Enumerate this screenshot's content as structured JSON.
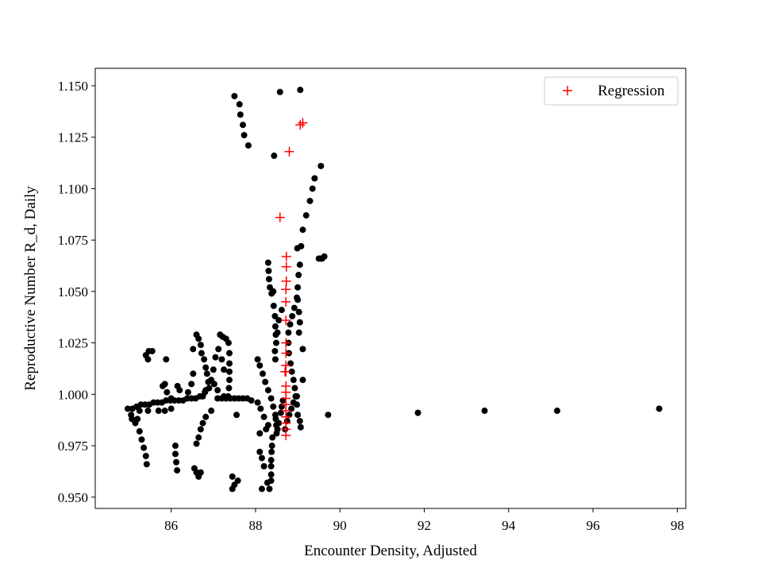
{
  "chart_data": {
    "type": "scatter",
    "title": "",
    "xlabel": "Encounter Density, Adjusted",
    "ylabel": "Reproductive Number R_d, Daily",
    "xlim": [
      84.2,
      98.2
    ],
    "ylim": [
      0.9445,
      1.1585
    ],
    "xticks": [
      86,
      88,
      90,
      92,
      94,
      96,
      98
    ],
    "xtick_labels": [
      "86",
      "88",
      "90",
      "92",
      "94",
      "96",
      "98"
    ],
    "yticks": [
      0.95,
      0.975,
      1.0,
      1.025,
      1.05,
      1.075,
      1.1,
      1.125,
      1.15
    ],
    "ytick_labels": [
      "0.950",
      "0.975",
      "1.000",
      "1.025",
      "1.050",
      "1.075",
      "1.100",
      "1.125",
      "1.150"
    ],
    "grid": false,
    "legend": {
      "position": "top-right",
      "entries": [
        "Regression"
      ]
    },
    "colors": {
      "data": "#000000",
      "regression": "#ff0000"
    },
    "series": [
      {
        "marker": "dot",
        "color": "#000000",
        "points": [
          [
            87.5,
            1.145
          ],
          [
            87.62,
            1.141
          ],
          [
            87.64,
            1.136
          ],
          [
            87.7,
            1.131
          ],
          [
            87.73,
            1.126
          ],
          [
            87.83,
            1.121
          ],
          [
            88.58,
            1.147
          ],
          [
            89.06,
            1.148
          ],
          [
            88.44,
            1.116
          ],
          [
            89.55,
            1.111
          ],
          [
            89.4,
            1.105
          ],
          [
            89.35,
            1.1
          ],
          [
            89.29,
            1.094
          ],
          [
            89.2,
            1.087
          ],
          [
            89.12,
            1.08
          ],
          [
            89.08,
            1.072
          ],
          [
            88.99,
            1.071
          ],
          [
            89.5,
            1.066
          ],
          [
            89.58,
            1.066
          ],
          [
            89.63,
            1.067
          ],
          [
            89.55,
            1.066
          ],
          [
            89.05,
            1.063
          ],
          [
            89.02,
            1.058
          ],
          [
            89.0,
            1.052
          ],
          [
            89.0,
            1.046
          ],
          [
            89.03,
            1.04
          ],
          [
            89.05,
            1.035
          ],
          [
            89.03,
            1.03
          ],
          [
            88.98,
            1.047
          ],
          [
            88.92,
            1.042
          ],
          [
            88.87,
            1.038
          ],
          [
            88.82,
            1.034
          ],
          [
            88.78,
            1.03
          ],
          [
            88.78,
            1.025
          ],
          [
            88.79,
            1.02
          ],
          [
            88.83,
            1.015
          ],
          [
            88.86,
            1.011
          ],
          [
            88.9,
            1.007
          ],
          [
            88.93,
            1.003
          ],
          [
            88.98,
            0.999
          ],
          [
            88.98,
            0.995
          ],
          [
            89.0,
            0.99
          ],
          [
            89.05,
            0.987
          ],
          [
            89.07,
            0.984
          ],
          [
            89.12,
            1.007
          ],
          [
            89.12,
            1.022
          ],
          [
            89.72,
            0.99
          ],
          [
            88.3,
            1.064
          ],
          [
            88.31,
            1.06
          ],
          [
            88.32,
            1.056
          ],
          [
            88.34,
            1.052
          ],
          [
            88.38,
            1.049
          ],
          [
            88.43,
            1.043
          ],
          [
            88.46,
            1.038
          ],
          [
            88.47,
            1.033
          ],
          [
            88.48,
            1.029
          ],
          [
            88.49,
            1.025
          ],
          [
            88.46,
            1.021
          ],
          [
            88.47,
            1.017
          ],
          [
            88.42,
            1.05
          ],
          [
            88.62,
            1.041
          ],
          [
            88.55,
            1.036
          ],
          [
            88.52,
            1.03
          ],
          [
            88.05,
            1.017
          ],
          [
            88.1,
            1.014
          ],
          [
            88.17,
            1.01
          ],
          [
            88.23,
            1.006
          ],
          [
            88.3,
            1.002
          ],
          [
            88.37,
            0.998
          ],
          [
            88.42,
            0.994
          ],
          [
            88.47,
            0.99
          ],
          [
            88.49,
            0.985
          ],
          [
            88.5,
            0.981
          ],
          [
            88.4,
            0.979
          ],
          [
            88.39,
            0.975
          ],
          [
            88.38,
            0.972
          ],
          [
            88.37,
            0.968
          ],
          [
            88.37,
            0.965
          ],
          [
            88.37,
            0.961
          ],
          [
            88.37,
            0.958
          ],
          [
            88.33,
            0.954
          ],
          [
            88.15,
            0.969
          ],
          [
            88.1,
            0.972
          ],
          [
            88.2,
            0.965
          ],
          [
            88.28,
            0.957
          ],
          [
            88.15,
            0.954
          ],
          [
            88.7,
            0.983
          ],
          [
            88.75,
            0.987
          ],
          [
            88.8,
            0.99
          ],
          [
            88.85,
            0.993
          ],
          [
            88.9,
            0.996
          ],
          [
            88.95,
            0.999
          ],
          [
            88.6,
            0.991
          ],
          [
            88.62,
            0.994
          ],
          [
            88.65,
            0.997
          ],
          [
            88.55,
            0.986
          ],
          [
            88.52,
            0.983
          ],
          [
            88.48,
            0.988
          ],
          [
            88.3,
            0.985
          ],
          [
            88.2,
            0.989
          ],
          [
            88.12,
            0.993
          ],
          [
            88.05,
            0.996
          ],
          [
            88.1,
            0.981
          ],
          [
            88.25,
            0.983
          ],
          [
            87.9,
            0.997
          ],
          [
            87.8,
            0.998
          ],
          [
            87.7,
            0.998
          ],
          [
            87.6,
            0.998
          ],
          [
            87.5,
            0.998
          ],
          [
            87.4,
            0.998
          ],
          [
            87.3,
            0.998
          ],
          [
            87.2,
            0.998
          ],
          [
            87.1,
            0.998
          ],
          [
            87.35,
            0.999
          ],
          [
            87.25,
            0.999
          ],
          [
            87.16,
            1.029
          ],
          [
            87.22,
            1.028
          ],
          [
            87.3,
            1.027
          ],
          [
            87.36,
            1.025
          ],
          [
            87.38,
            1.02
          ],
          [
            87.38,
            1.015
          ],
          [
            87.38,
            1.011
          ],
          [
            87.38,
            1.007
          ],
          [
            87.37,
            1.003
          ],
          [
            87.12,
            1.022
          ],
          [
            87.05,
            1.018
          ],
          [
            87.0,
            1.012
          ],
          [
            86.95,
            1.007
          ],
          [
            87.2,
            1.017
          ],
          [
            87.25,
            1.012
          ],
          [
            87.1,
            1.002
          ],
          [
            87.02,
            1.005
          ],
          [
            86.9,
            1.003
          ],
          [
            86.8,
            1.001
          ],
          [
            86.68,
            0.999
          ],
          [
            86.58,
            0.998
          ],
          [
            86.48,
            0.998
          ],
          [
            86.38,
            0.998
          ],
          [
            86.28,
            0.997
          ],
          [
            86.18,
            0.997
          ],
          [
            86.08,
            0.997
          ],
          [
            85.98,
            0.997
          ],
          [
            85.88,
            0.997
          ],
          [
            85.78,
            0.996
          ],
          [
            85.68,
            0.996
          ],
          [
            85.58,
            0.996
          ],
          [
            85.48,
            0.995
          ],
          [
            85.38,
            0.995
          ],
          [
            85.28,
            0.995
          ],
          [
            85.18,
            0.994
          ],
          [
            85.08,
            0.993
          ],
          [
            84.97,
            0.993
          ],
          [
            86.6,
            1.029
          ],
          [
            86.65,
            1.027
          ],
          [
            86.7,
            1.024
          ],
          [
            86.72,
            1.02
          ],
          [
            86.78,
            1.017
          ],
          [
            86.82,
            1.013
          ],
          [
            86.85,
            1.01
          ],
          [
            86.88,
            1.006
          ],
          [
            86.82,
            1.002
          ],
          [
            86.75,
            0.999
          ],
          [
            86.52,
            1.022
          ],
          [
            86.52,
            1.01
          ],
          [
            86.48,
            1.005
          ],
          [
            86.4,
            1.001
          ],
          [
            85.4,
            1.019
          ],
          [
            85.47,
            1.021
          ],
          [
            85.55,
            1.021
          ],
          [
            85.45,
            1.017
          ],
          [
            85.85,
            1.005
          ],
          [
            85.8,
            1.004
          ],
          [
            85.9,
            1.001
          ],
          [
            85.88,
            1.017
          ],
          [
            86.0,
            0.998
          ],
          [
            86.2,
            1.002
          ],
          [
            86.15,
            1.004
          ],
          [
            85.05,
            0.99
          ],
          [
            85.07,
            0.988
          ],
          [
            85.15,
            0.986
          ],
          [
            85.25,
            0.982
          ],
          [
            85.3,
            0.978
          ],
          [
            85.35,
            0.974
          ],
          [
            85.4,
            0.97
          ],
          [
            85.42,
            0.966
          ],
          [
            85.2,
            0.988
          ],
          [
            85.25,
            0.992
          ],
          [
            85.45,
            0.992
          ],
          [
            85.7,
            0.992
          ],
          [
            85.85,
            0.992
          ],
          [
            86.0,
            0.993
          ],
          [
            86.1,
            0.975
          ],
          [
            86.1,
            0.971
          ],
          [
            86.12,
            0.967
          ],
          [
            86.14,
            0.963
          ],
          [
            86.55,
            0.964
          ],
          [
            86.6,
            0.962
          ],
          [
            86.65,
            0.96
          ],
          [
            86.7,
            0.962
          ],
          [
            86.6,
            0.976
          ],
          [
            86.65,
            0.979
          ],
          [
            86.7,
            0.983
          ],
          [
            86.75,
            0.986
          ],
          [
            86.82,
            0.989
          ],
          [
            86.95,
            0.992
          ],
          [
            87.45,
            0.96
          ],
          [
            87.5,
            0.956
          ],
          [
            87.58,
            0.958
          ],
          [
            87.45,
            0.954
          ],
          [
            87.55,
            0.99
          ],
          [
            91.85,
            0.991
          ],
          [
            93.43,
            0.992
          ],
          [
            95.15,
            0.992
          ],
          [
            97.57,
            0.993
          ]
        ]
      },
      {
        "name": "Regression",
        "marker": "plus",
        "color": "#ff0000",
        "points": [
          [
            89.12,
            1.132
          ],
          [
            89.06,
            1.131
          ],
          [
            88.8,
            1.118
          ],
          [
            88.58,
            1.086
          ],
          [
            88.73,
            1.067
          ],
          [
            88.73,
            1.062
          ],
          [
            88.73,
            1.055
          ],
          [
            88.72,
            1.051
          ],
          [
            88.72,
            1.045
          ],
          [
            88.72,
            1.036
          ],
          [
            88.72,
            1.025
          ],
          [
            88.72,
            1.02
          ],
          [
            88.72,
            1.014
          ],
          [
            88.72,
            1.011
          ],
          [
            88.7,
            1.011
          ],
          [
            88.72,
            1.004
          ],
          [
            88.72,
            1.001
          ],
          [
            88.72,
            0.998
          ],
          [
            88.72,
            0.995
          ],
          [
            88.72,
            0.992
          ],
          [
            88.72,
            0.989
          ],
          [
            88.72,
            0.986
          ],
          [
            88.72,
            0.983
          ],
          [
            88.72,
            0.98
          ]
        ]
      }
    ]
  }
}
